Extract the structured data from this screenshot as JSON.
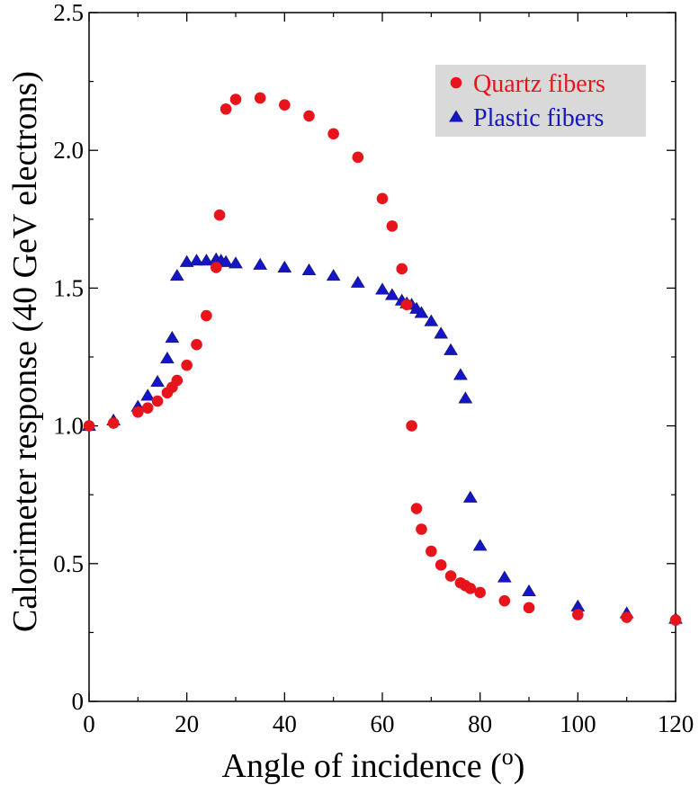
{
  "chart_data": {
    "type": "scatter",
    "xlabel": "Angle of incidence (",
    "xlabel_sup": "o",
    "xlabel_close": ")",
    "ylabel": "Calorimeter response (40 GeV electrons)",
    "xlim": [
      0,
      120
    ],
    "ylim": [
      0,
      2.5
    ],
    "xticks": [
      0,
      20,
      40,
      60,
      80,
      100,
      120
    ],
    "xtick_labels": [
      "0",
      "20",
      "40",
      "60",
      "80",
      "100",
      "120"
    ],
    "yticks": [
      0,
      0.5,
      1.0,
      1.5,
      2.0,
      2.5
    ],
    "ytick_labels": [
      "0",
      "0.5",
      "1.0",
      "1.5",
      "2.0",
      "2.5"
    ],
    "grid": false,
    "legend_position": "top-right",
    "legend_background": "#d9d9d9",
    "series": [
      {
        "name": "Quartz fibers",
        "marker": "circle",
        "color": "#e8141c",
        "points": [
          [
            0,
            1.0
          ],
          [
            5,
            1.01
          ],
          [
            10,
            1.05
          ],
          [
            12,
            1.065
          ],
          [
            14,
            1.09
          ],
          [
            16,
            1.12
          ],
          [
            17,
            1.14
          ],
          [
            18,
            1.165
          ],
          [
            20,
            1.22
          ],
          [
            22,
            1.295
          ],
          [
            24,
            1.4
          ],
          [
            26,
            1.575
          ],
          [
            26.7,
            1.765
          ],
          [
            28,
            2.15
          ],
          [
            30,
            2.185
          ],
          [
            35,
            2.19
          ],
          [
            40,
            2.165
          ],
          [
            45,
            2.125
          ],
          [
            50,
            2.06
          ],
          [
            55,
            1.975
          ],
          [
            60,
            1.825
          ],
          [
            62,
            1.725
          ],
          [
            64,
            1.57
          ],
          [
            65,
            1.44
          ],
          [
            66,
            1.0
          ],
          [
            67,
            0.7
          ],
          [
            68,
            0.625
          ],
          [
            70,
            0.545
          ],
          [
            72,
            0.495
          ],
          [
            74,
            0.455
          ],
          [
            76,
            0.43
          ],
          [
            77,
            0.42
          ],
          [
            78,
            0.41
          ],
          [
            80,
            0.395
          ],
          [
            85,
            0.365
          ],
          [
            90,
            0.34
          ],
          [
            100,
            0.315
          ],
          [
            110,
            0.305
          ],
          [
            120,
            0.295
          ]
        ]
      },
      {
        "name": "Plastic fibers",
        "marker": "triangle",
        "color": "#1414c8",
        "points": [
          [
            0,
            1.0
          ],
          [
            5,
            1.02
          ],
          [
            10,
            1.07
          ],
          [
            12,
            1.11
          ],
          [
            14,
            1.16
          ],
          [
            16,
            1.245
          ],
          [
            17,
            1.32
          ],
          [
            18,
            1.545
          ],
          [
            20,
            1.595
          ],
          [
            22,
            1.6
          ],
          [
            24,
            1.6
          ],
          [
            26,
            1.605
          ],
          [
            27,
            1.6
          ],
          [
            28,
            1.595
          ],
          [
            30,
            1.59
          ],
          [
            35,
            1.585
          ],
          [
            40,
            1.575
          ],
          [
            45,
            1.565
          ],
          [
            50,
            1.545
          ],
          [
            55,
            1.52
          ],
          [
            60,
            1.495
          ],
          [
            62,
            1.475
          ],
          [
            64,
            1.455
          ],
          [
            65,
            1.445
          ],
          [
            66,
            1.44
          ],
          [
            67,
            1.425
          ],
          [
            68,
            1.41
          ],
          [
            70,
            1.38
          ],
          [
            72,
            1.335
          ],
          [
            74,
            1.275
          ],
          [
            76,
            1.185
          ],
          [
            77,
            1.1
          ],
          [
            78,
            0.74
          ],
          [
            80,
            0.565
          ],
          [
            85,
            0.45
          ],
          [
            90,
            0.4
          ],
          [
            100,
            0.345
          ],
          [
            110,
            0.32
          ],
          [
            120,
            0.3
          ]
        ]
      }
    ]
  }
}
